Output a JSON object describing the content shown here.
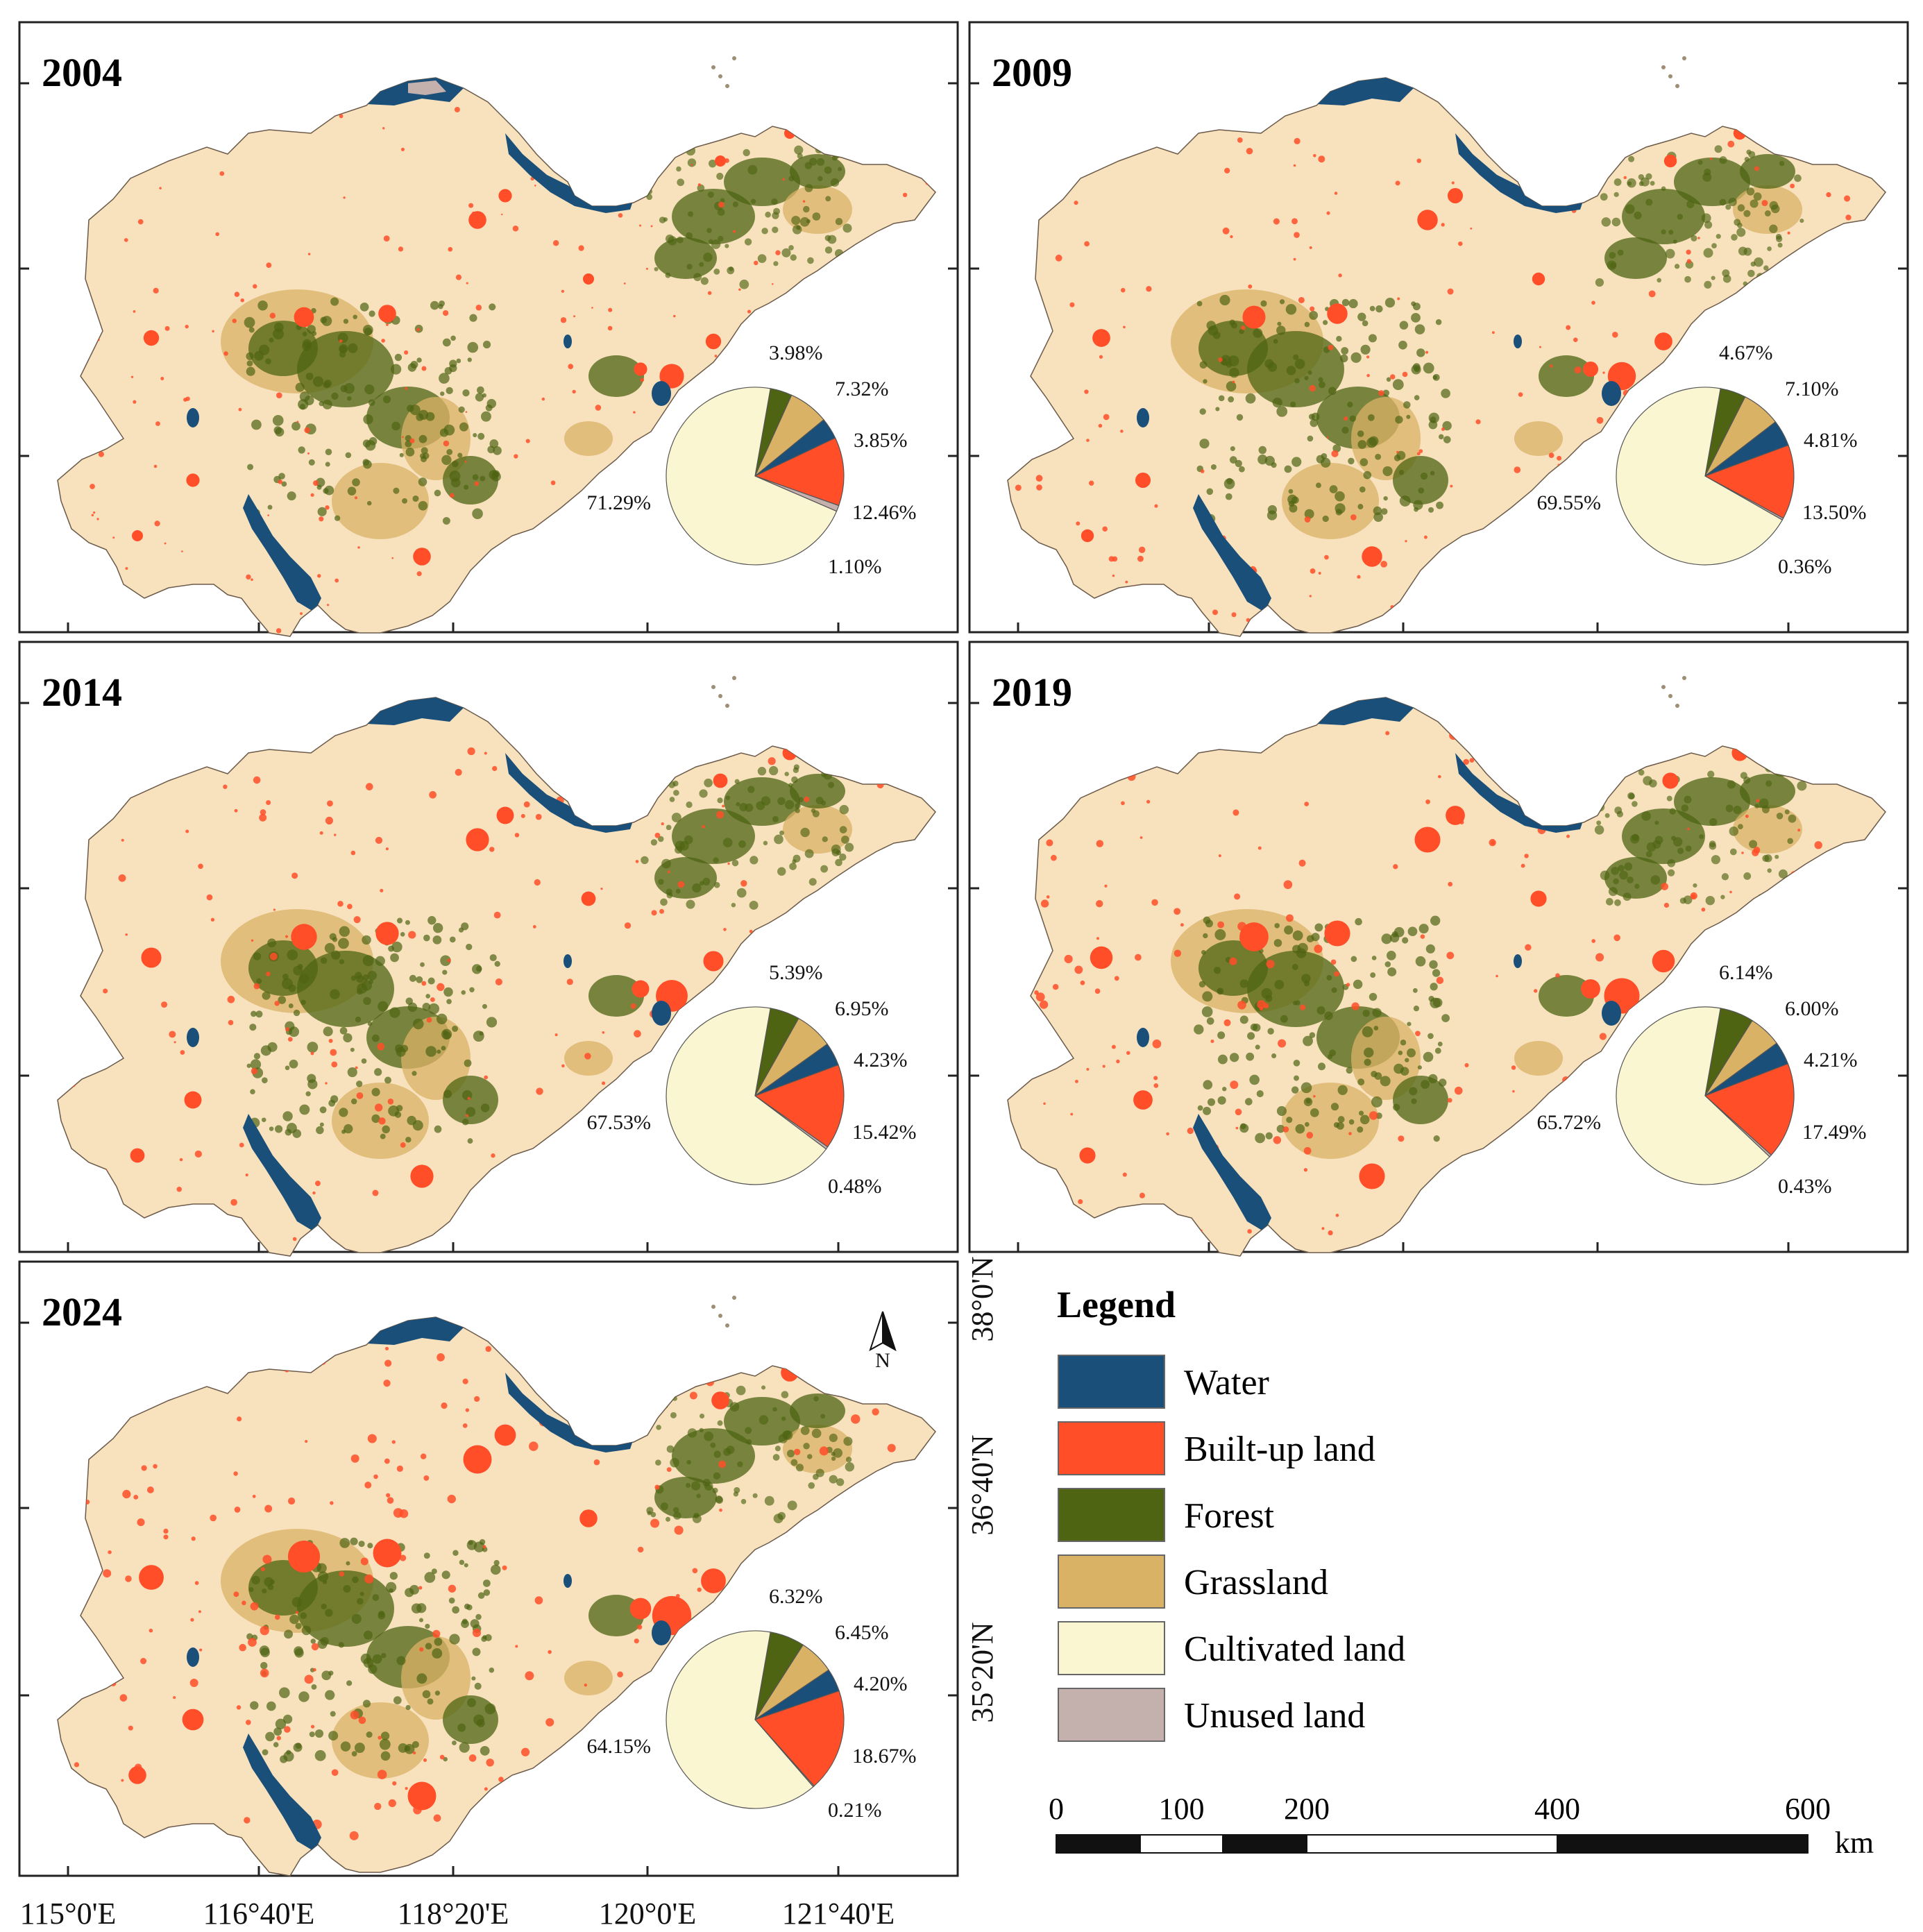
{
  "colors": {
    "Water": "#1a4f7a",
    "Built-up land": "#ff4e28",
    "Forest": "#4e6413",
    "Grassland": "#d9b266",
    "Cultivated land": "#fbf6d2",
    "Unused land": "#c4b0ad",
    "land_base": "#f8e2be"
  },
  "panels": [
    {
      "year": "2004",
      "shares": {
        "Forest": 3.98,
        "Grassland": 7.32,
        "Water": 3.85,
        "Built-up land": 12.46,
        "Unused land": 1.1,
        "Cultivated land": 71.29
      },
      "labels": {
        "Forest": "3.98%",
        "Grassland": "7.32%",
        "Water": "3.85%",
        "Built-up land": "12.46%",
        "Unused land": "1.10%",
        "Cultivated land": "71.29%"
      }
    },
    {
      "year": "2009",
      "shares": {
        "Forest": 4.67,
        "Grassland": 7.1,
        "Water": 4.81,
        "Built-up land": 13.5,
        "Unused land": 0.36,
        "Cultivated land": 69.55
      },
      "labels": {
        "Forest": "4.67%",
        "Grassland": "7.10%",
        "Water": "4.81%",
        "Built-up land": "13.50%",
        "Unused land": "0.36%",
        "Cultivated land": "69.55%"
      }
    },
    {
      "year": "2014",
      "shares": {
        "Forest": 5.39,
        "Grassland": 6.95,
        "Water": 4.23,
        "Built-up land": 15.42,
        "Unused land": 0.48,
        "Cultivated land": 67.53
      },
      "labels": {
        "Forest": "5.39%",
        "Grassland": "6.95%",
        "Water": "4.23%",
        "Built-up land": "15.42%",
        "Unused land": "0.48%",
        "Cultivated land": "67.53%"
      }
    },
    {
      "year": "2019",
      "shares": {
        "Forest": 6.14,
        "Grassland": 6.0,
        "Water": 4.21,
        "Built-up land": 17.49,
        "Unused land": 0.43,
        "Cultivated land": 65.72
      },
      "labels": {
        "Forest": "6.14%",
        "Grassland": "6.00%",
        "Water": "4.21%",
        "Built-up land": "17.49%",
        "Unused land": "0.43%",
        "Cultivated land": "65.72%"
      }
    },
    {
      "year": "2024",
      "shares": {
        "Forest": 6.32,
        "Grassland": 6.45,
        "Water": 4.2,
        "Built-up land": 18.67,
        "Unused land": 0.21,
        "Cultivated land": 64.15
      },
      "labels": {
        "Forest": "6.32%",
        "Grassland": "6.45%",
        "Water": "4.20%",
        "Built-up land": "18.67%",
        "Unused land": "0.21%",
        "Cultivated land": "64.15%"
      }
    }
  ],
  "pie_order": [
    "Forest",
    "Grassland",
    "Water",
    "Built-up land",
    "Unused land",
    "Cultivated land"
  ],
  "lon_labels": [
    "115°0'E",
    "116°40'E",
    "118°20'E",
    "120°0'E",
    "121°40'E"
  ],
  "lat_labels": [
    "38°0'N",
    "36°40'N",
    "35°20'N"
  ],
  "north_label": "N",
  "legend": {
    "title": "Legend",
    "items": [
      "Water",
      "Built-up land",
      "Forest",
      "Grassland",
      "Cultivated land",
      "Unused land"
    ]
  },
  "scalebar": {
    "ticks": [
      "0",
      "100",
      "200",
      "400",
      "600"
    ],
    "unit": "km"
  }
}
